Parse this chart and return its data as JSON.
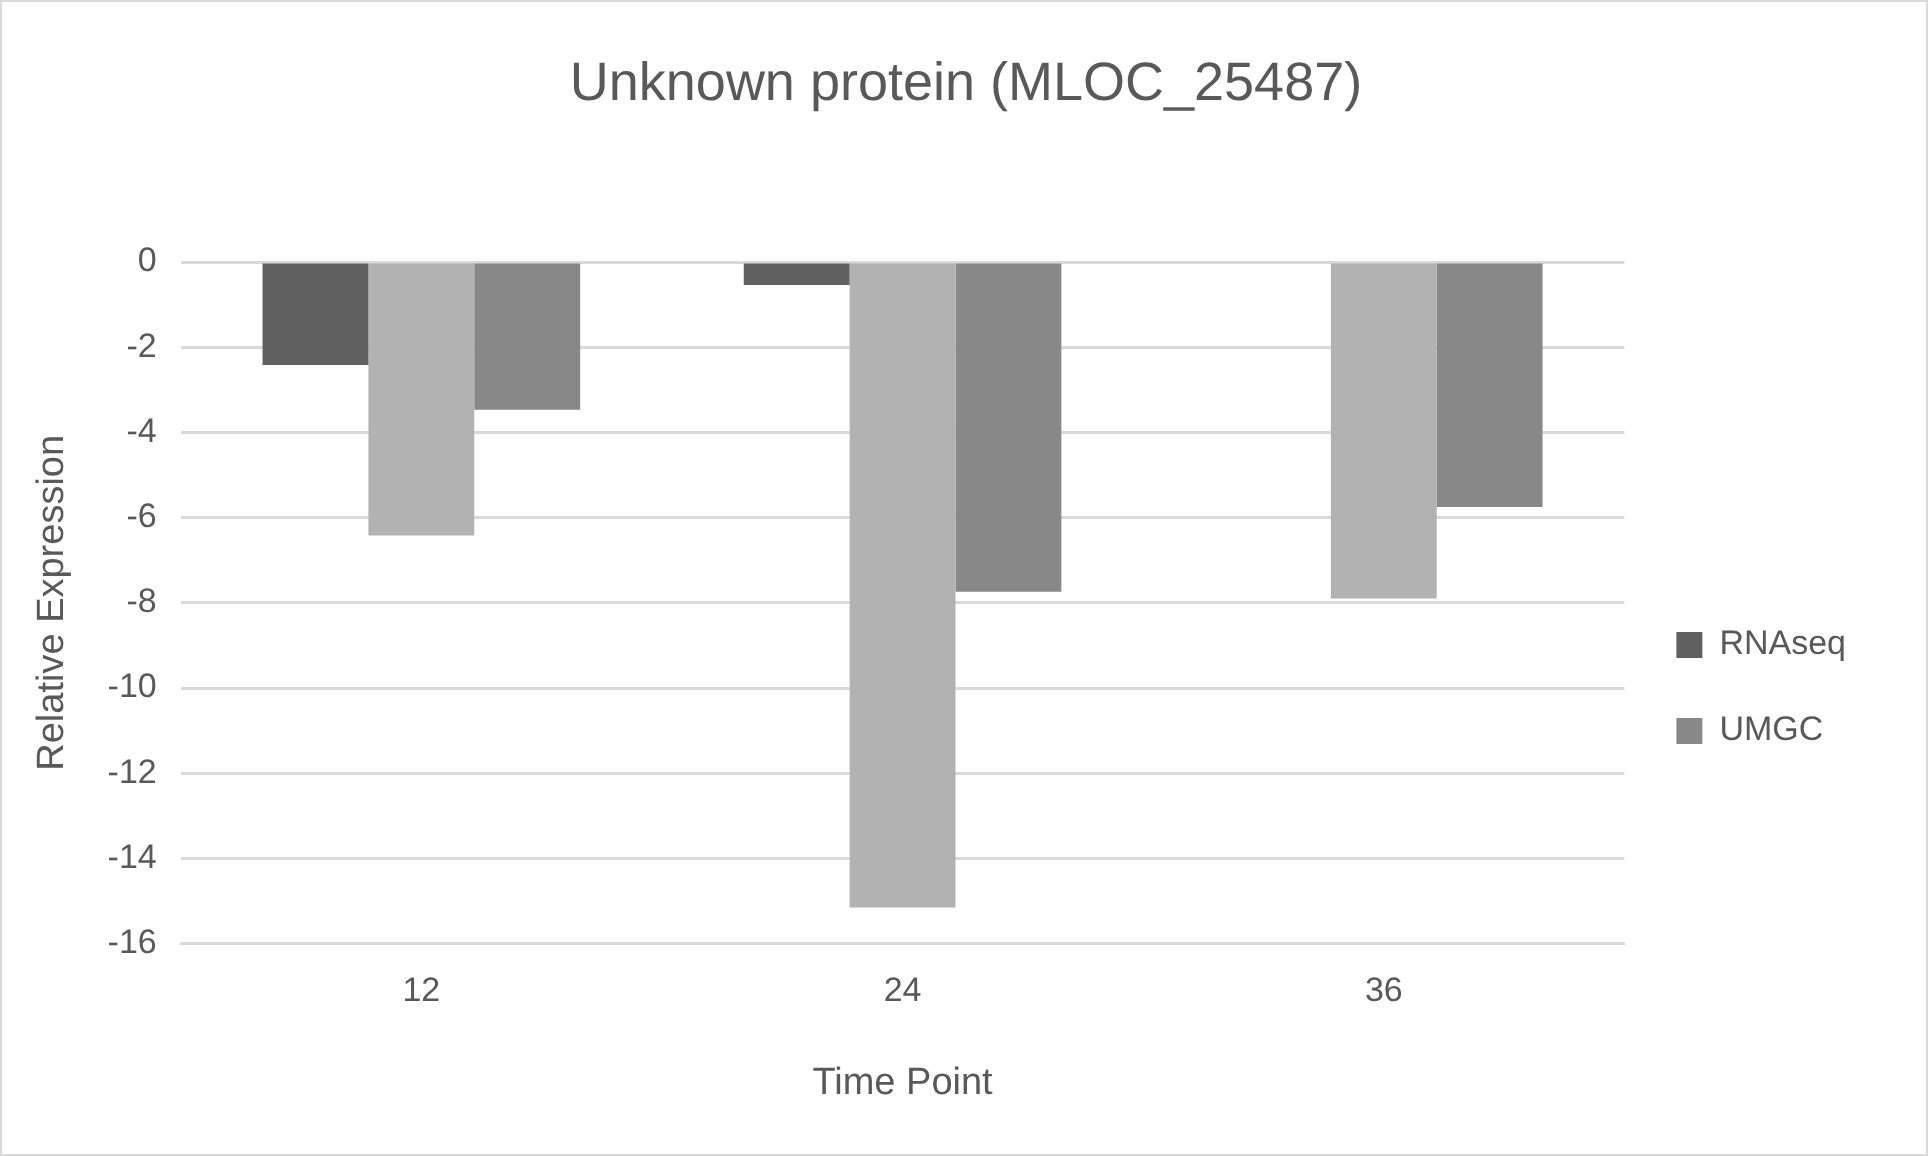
{
  "chart_data": {
    "type": "bar",
    "title": "Unknown protein (MLOC_25487)",
    "xlabel": "Time Point",
    "ylabel": "Relative Expression",
    "categories": [
      "12",
      "24",
      "36"
    ],
    "series": [
      {
        "name": "RNAseq",
        "color": "#606060",
        "values": [
          -2.42,
          -0.54,
          0
        ]
      },
      {
        "color": "#b2b2b2",
        "values": [
          -6.42,
          -15.15,
          -7.9
        ]
      },
      {
        "name": "UMGC",
        "color": "#888888",
        "values": [
          -3.47,
          -7.74,
          -5.75
        ]
      }
    ],
    "ylim": [
      -16,
      0
    ],
    "yticks": [
      -16,
      -14,
      -12,
      -10,
      -8,
      -6,
      -4,
      -2,
      0
    ],
    "grid": "y",
    "legend": "right"
  }
}
